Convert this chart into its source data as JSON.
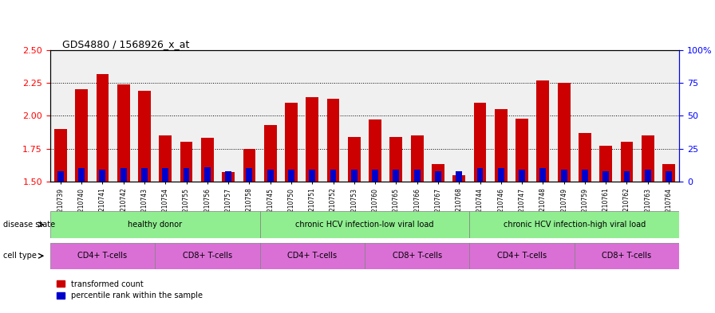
{
  "title": "GDS4880 / 1568926_x_at",
  "samples": [
    "GSM1210739",
    "GSM1210740",
    "GSM1210741",
    "GSM1210742",
    "GSM1210743",
    "GSM1210754",
    "GSM1210755",
    "GSM1210756",
    "GSM1210757",
    "GSM1210758",
    "GSM1210745",
    "GSM1210750",
    "GSM1210751",
    "GSM1210752",
    "GSM1210753",
    "GSM1210760",
    "GSM1210765",
    "GSM1210766",
    "GSM1210767",
    "GSM1210768",
    "GSM1210744",
    "GSM1210746",
    "GSM1210747",
    "GSM1210748",
    "GSM1210749",
    "GSM1210759",
    "GSM1210761",
    "GSM1210762",
    "GSM1210763",
    "GSM1210764"
  ],
  "transformed_count": [
    1.9,
    2.2,
    2.32,
    2.24,
    2.19,
    1.85,
    1.8,
    1.83,
    1.57,
    1.75,
    1.93,
    2.1,
    2.14,
    2.13,
    1.84,
    1.97,
    1.84,
    1.85,
    1.63,
    1.55,
    2.1,
    2.05,
    1.98,
    2.27,
    2.25,
    1.87,
    1.77,
    1.8,
    1.85,
    1.63
  ],
  "percentile_rank": [
    8,
    10,
    9,
    10,
    10,
    10,
    10,
    11,
    8,
    10,
    9,
    9,
    9,
    9,
    9,
    9,
    9,
    9,
    8,
    8,
    10,
    10,
    9,
    10,
    9,
    9,
    8,
    8,
    9,
    8
  ],
  "ylim_left": [
    1.5,
    2.5
  ],
  "ylim_right": [
    0,
    100
  ],
  "yticks_left": [
    1.5,
    1.75,
    2.0,
    2.25,
    2.5
  ],
  "yticks_right": [
    0,
    25,
    50,
    75,
    100
  ],
  "bar_color": "#CC0000",
  "percentile_color": "#0000CC",
  "background_color": "#FFFFFF",
  "plot_bg_color": "#F0F0F0",
  "disease_state_groups": [
    {
      "label": "healthy donor",
      "start": 0,
      "end": 9,
      "color": "#90EE90"
    },
    {
      "label": "chronic HCV infection-low viral load",
      "start": 10,
      "end": 19,
      "color": "#90EE90"
    },
    {
      "label": "chronic HCV infection-high viral load",
      "start": 20,
      "end": 29,
      "color": "#90EE90"
    }
  ],
  "cell_type_groups": [
    {
      "label": "CD4+ T-cells",
      "start": 0,
      "end": 4,
      "color": "#DA70D6"
    },
    {
      "label": "CD8+ T-cells",
      "start": 5,
      "end": 9,
      "color": "#DA70D6"
    },
    {
      "label": "CD4+ T-cells",
      "start": 10,
      "end": 14,
      "color": "#DA70D6"
    },
    {
      "label": "CD8+ T-cells",
      "start": 15,
      "end": 19,
      "color": "#DA70D6"
    },
    {
      "label": "CD4+ T-cells",
      "start": 20,
      "end": 24,
      "color": "#DA70D6"
    },
    {
      "label": "CD8+ T-cells",
      "start": 25,
      "end": 29,
      "color": "#DA70D6"
    }
  ],
  "legend_transformed": "transformed count",
  "legend_percentile": "percentile rank within the sample",
  "base_value": 1.5
}
